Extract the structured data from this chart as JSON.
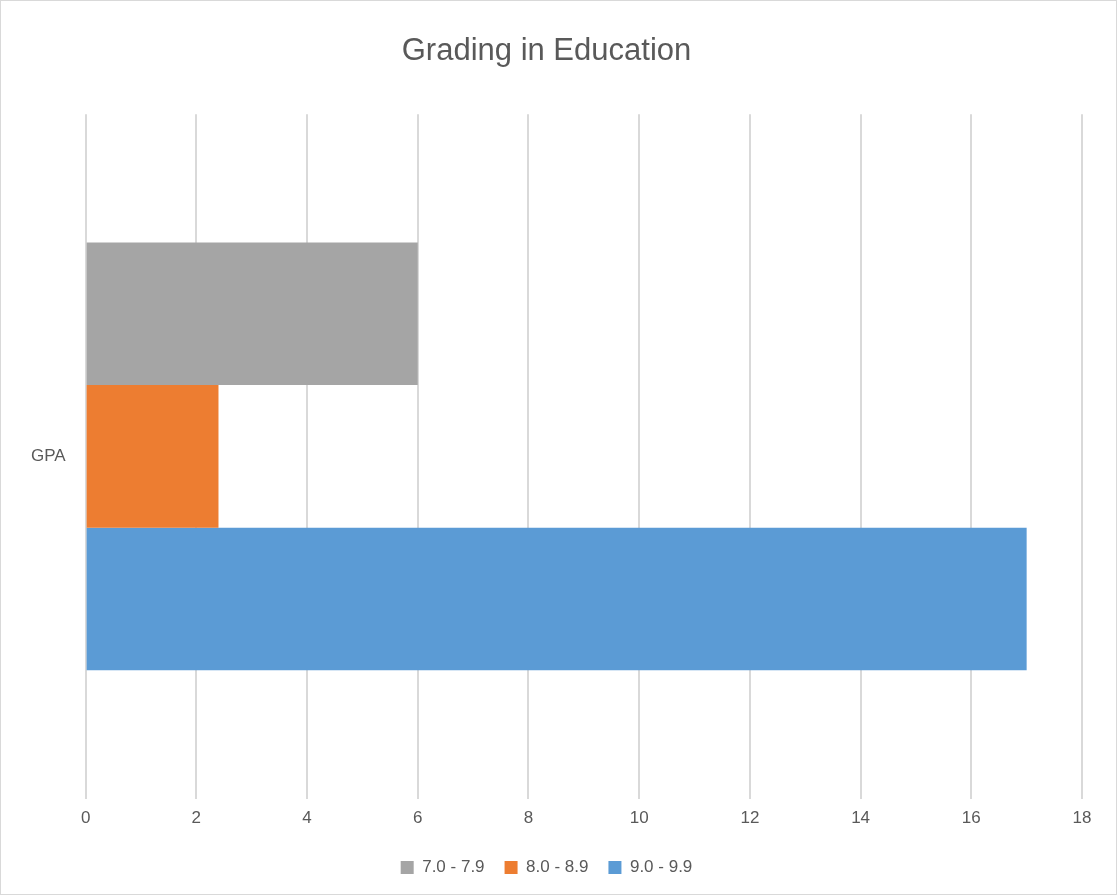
{
  "chart_data": {
    "type": "bar",
    "orientation": "horizontal",
    "title": "Grading in Education",
    "categories": [
      "GPA"
    ],
    "series": [
      {
        "name": "7.0 - 7.9",
        "color": "#a5a5a5",
        "values": [
          6
        ]
      },
      {
        "name": "8.0 - 8.9",
        "color": "#ed7d31",
        "values": [
          2.4
        ]
      },
      {
        "name": "9.0 - 9.9",
        "color": "#5b9bd5",
        "values": [
          17
        ]
      }
    ],
    "xlim": [
      0,
      18
    ],
    "xticks": [
      0,
      2,
      4,
      6,
      8,
      10,
      12,
      14,
      16,
      18
    ],
    "grid": "x",
    "legend": "bottom"
  }
}
